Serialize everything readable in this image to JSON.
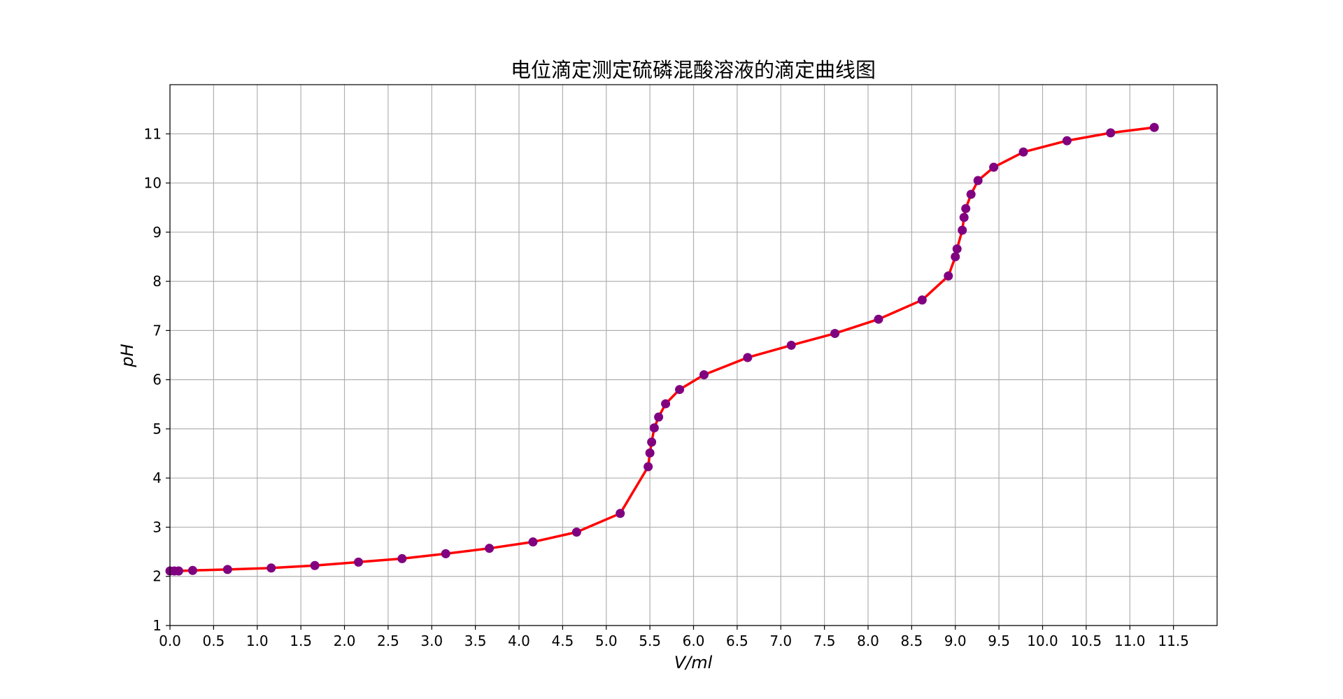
{
  "chart_data": {
    "type": "line",
    "title": "电位滴定测定硫磷混酸溶液的滴定曲线图",
    "xlabel": "V/ml",
    "ylabel": "pH",
    "xlim": [
      0,
      12
    ],
    "ylim": [
      1,
      12
    ],
    "x_ticks": [
      "0.0",
      "0.5",
      "1.0",
      "1.5",
      "2.0",
      "2.5",
      "3.0",
      "3.5",
      "4.0",
      "4.5",
      "5.0",
      "5.5",
      "6.0",
      "6.5",
      "7.0",
      "7.5",
      "8.0",
      "8.5",
      "9.0",
      "9.5",
      "10.0",
      "10.5",
      "11.0",
      "11.5"
    ],
    "y_ticks": [
      "1",
      "2",
      "3",
      "4",
      "5",
      "6",
      "7",
      "8",
      "9",
      "10",
      "11"
    ],
    "grid": true,
    "line_color": "#ff0000",
    "marker_color": "#800080",
    "series": [
      {
        "x": [
          0.0,
          0.05,
          0.1,
          0.26,
          0.66,
          1.16,
          1.66,
          2.16,
          2.66,
          3.16,
          3.66,
          4.16,
          4.66,
          5.16,
          5.48,
          5.5,
          5.52,
          5.55,
          5.6,
          5.68,
          5.84,
          6.12,
          6.62,
          7.12,
          7.62,
          8.12,
          8.62,
          8.92,
          9.0,
          9.02,
          9.08,
          9.1,
          9.12,
          9.18,
          9.26,
          9.44,
          9.78,
          10.28,
          10.78,
          11.28
        ],
        "y": [
          2.11,
          2.11,
          2.11,
          2.12,
          2.14,
          2.17,
          2.22,
          2.29,
          2.36,
          2.46,
          2.57,
          2.7,
          2.9,
          3.28,
          4.23,
          4.51,
          4.73,
          5.02,
          5.24,
          5.51,
          5.8,
          6.1,
          6.45,
          6.7,
          6.94,
          7.23,
          7.62,
          8.11,
          8.5,
          8.66,
          9.04,
          9.3,
          9.48,
          9.77,
          10.05,
          10.32,
          10.63,
          10.86,
          11.02,
          11.13
        ]
      }
    ]
  }
}
